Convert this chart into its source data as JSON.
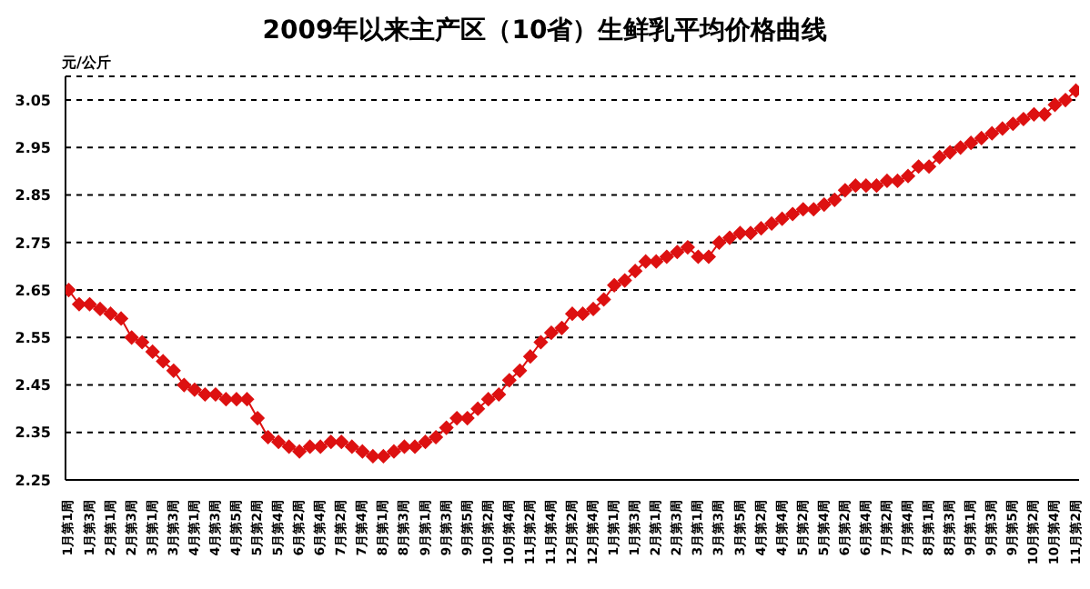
{
  "chart_data": {
    "type": "line",
    "title": "2009年以来主产区（10省）生鲜乳平均价格曲线",
    "ylabel": "元/公斤",
    "categories": [
      "1月第1周",
      null,
      "1月第3周",
      null,
      "2月第1周",
      null,
      "2月第3周",
      null,
      "3月第1周",
      null,
      "3月第3周",
      null,
      "4月第1周",
      null,
      "4月第3周",
      null,
      "4月第5周",
      null,
      "5月第2周",
      null,
      "5月第4周",
      null,
      "6月第2周",
      null,
      "6月第4周",
      null,
      "7月第2周",
      null,
      "7月第4周",
      null,
      "8月第1周",
      null,
      "8月第3周",
      null,
      "9月第1周",
      null,
      "9月第3周",
      null,
      "9月第5周",
      null,
      "10月第2周",
      null,
      "10月第4周",
      null,
      "11月第2周",
      null,
      "11月第4周",
      null,
      "12月第2周",
      null,
      "12月第4周",
      null,
      "1月第1周",
      null,
      "1月第3周",
      null,
      "2月第1周",
      null,
      "2月第3周",
      null,
      "3月第1周",
      null,
      "3月第3周",
      null,
      "3月第5周",
      null,
      "4月第2周",
      null,
      "4月第4周",
      null,
      "5月第2周",
      null,
      "5月第4周",
      null,
      "6月第2周",
      null,
      "6月第4周",
      null,
      "7月第2周",
      null,
      "7月第4周",
      null,
      "8月第1周",
      null,
      "8月第3周",
      null,
      "9月第1周",
      null,
      "9月第3周",
      null,
      "9月第5周",
      null,
      "10月第2周",
      null,
      "10月第4周",
      null,
      "11月第2周"
    ],
    "series": [
      {
        "color": "#dd1111",
        "values": [
          2.65,
          2.62,
          2.62,
          2.61,
          2.6,
          2.59,
          2.55,
          2.54,
          2.52,
          2.5,
          2.48,
          2.45,
          2.44,
          2.43,
          2.43,
          2.42,
          2.42,
          2.42,
          2.38,
          2.34,
          2.33,
          2.32,
          2.31,
          2.32,
          2.32,
          2.33,
          2.33,
          2.32,
          2.31,
          2.3,
          2.3,
          2.31,
          2.32,
          2.32,
          2.33,
          2.34,
          2.36,
          2.38,
          2.38,
          2.4,
          2.42,
          2.43,
          2.46,
          2.48,
          2.51,
          2.54,
          2.56,
          2.57,
          2.6,
          2.6,
          2.61,
          2.63,
          2.66,
          2.67,
          2.69,
          2.71,
          2.71,
          2.72,
          2.73,
          2.74,
          2.72,
          2.72,
          2.75,
          2.76,
          2.77,
          2.77,
          2.78,
          2.79,
          2.8,
          2.81,
          2.82,
          2.82,
          2.83,
          2.84,
          2.86,
          2.87,
          2.87,
          2.87,
          2.88,
          2.88,
          2.89,
          2.91,
          2.91,
          2.93,
          2.94,
          2.95,
          2.96,
          2.97,
          2.98,
          2.99,
          3.0,
          3.01,
          3.02,
          3.02,
          3.04,
          3.05,
          3.07
        ]
      }
    ],
    "ylim": [
      2.25,
      3.1
    ],
    "yticks": [
      2.25,
      2.35,
      2.45,
      2.55,
      2.65,
      2.75,
      2.85,
      2.95,
      3.05
    ],
    "grid": "y",
    "marker": "diamond",
    "line_style": "solid",
    "legend": false
  }
}
